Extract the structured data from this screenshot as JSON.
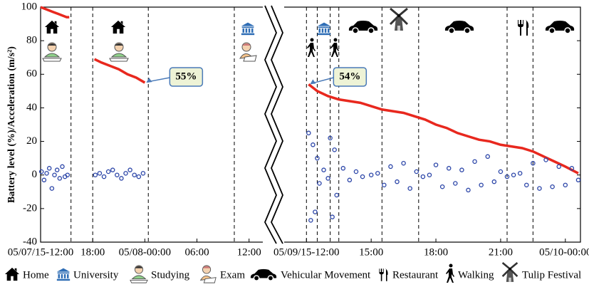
{
  "chart_data": {
    "type": "line",
    "y_label": "Battery level (%)/Acceleration (m/s²)",
    "ylim": [
      -40,
      100
    ],
    "yticks": [
      -40,
      -20,
      0,
      20,
      40,
      60,
      80,
      100
    ],
    "panels": [
      {
        "xlim": [
          0,
          25.5
        ],
        "xticks": [
          {
            "value": 0,
            "label": "05/07/15-12:00"
          },
          {
            "value": 6,
            "label": "18:00"
          },
          {
            "value": 12,
            "label": "05/08-00:00"
          },
          {
            "value": 18,
            "label": "06:00"
          },
          {
            "value": 24,
            "label": "12:00"
          }
        ],
        "event_lines": [
          3.5,
          6.0,
          12.4,
          22.3
        ],
        "series": [
          {
            "type": "line",
            "color": "#e8281e",
            "x": [
              0,
              0.5,
              1,
              1.5,
              2,
              2.5,
              3,
              3.3,
              4.5,
              6.2,
              7,
              8,
              9,
              10,
              11,
              12
            ],
            "values": [
              100,
              99,
              98,
              97,
              96,
              95,
              94,
              94,
              null,
              69,
              67,
              65,
              63,
              60,
              58,
              55
            ]
          },
          {
            "type": "scatter",
            "color": "#2b45a8",
            "x": [
              0.1,
              0.4,
              0.7,
              1.0,
              1.3,
              1.6,
              1.9,
              2.2,
              2.5,
              2.8,
              3.1,
              6.3,
              6.8,
              7.3,
              7.8,
              8.3,
              8.8,
              9.3,
              9.8,
              10.3,
              10.8,
              11.3,
              11.8
            ],
            "values": [
              2,
              -3,
              1,
              4,
              -8,
              0,
              3,
              -2,
              5,
              -1,
              0,
              0,
              1,
              -1,
              2,
              3,
              0,
              -2,
              1,
              3,
              0,
              -1,
              1
            ]
          }
        ],
        "annotations": [
          {
            "label": "55%",
            "x": 12,
            "value": 55
          }
        ]
      },
      {
        "xlim": [
          11,
          24.7
        ],
        "xticks": [
          {
            "value": 12,
            "label": "05/09/15-12:00"
          },
          {
            "value": 15,
            "label": "15:00"
          },
          {
            "value": 18,
            "label": "18:00"
          },
          {
            "value": 21,
            "label": "21:00"
          },
          {
            "value": 24,
            "label": "05/10-00:00"
          }
        ],
        "event_lines": [
          12.0,
          12.5,
          13.1,
          13.5,
          15.5,
          17.2,
          21.3,
          22.5
        ],
        "series": [
          {
            "type": "line",
            "color": "#e8281e",
            "x": [
              12.1,
              12.5,
              13,
              13.5,
              14,
              14.5,
              15,
              15.5,
              16,
              16.5,
              17,
              17.5,
              18,
              18.5,
              19,
              19.5,
              20,
              20.5,
              21,
              21.5,
              22,
              22.5,
              23,
              23.5,
              24,
              24.3,
              24.6
            ],
            "values": [
              54,
              50,
              47,
              45,
              44,
              43,
              41,
              39,
              38,
              37,
              35,
              33,
              30,
              28,
              25,
              23,
              21,
              20,
              18,
              17,
              16,
              14,
              11,
              8,
              5,
              3,
              1
            ]
          },
          {
            "type": "scatter",
            "color": "#2b45a8",
            "x": [
              12.1,
              12.2,
              12.3,
              12.4,
              12.5,
              12.6,
              12.8,
              13.0,
              13.1,
              13.2,
              13.3,
              13.4,
              13.7,
              14.0,
              14.3,
              14.6,
              15.0,
              15.3,
              15.6,
              15.9,
              16.2,
              16.5,
              16.8,
              17.1,
              17.4,
              17.7,
              18.0,
              18.3,
              18.6,
              18.9,
              19.2,
              19.5,
              19.8,
              20.1,
              20.4,
              20.7,
              21.0,
              21.3,
              21.6,
              21.9,
              22.2,
              22.5,
              22.8,
              23.1,
              23.4,
              23.7,
              24.0,
              24.3,
              24.6
            ],
            "values": [
              25,
              -27,
              18,
              -22,
              10,
              -5,
              3,
              -2,
              22,
              -25,
              15,
              -12,
              4,
              -3,
              2,
              -1,
              0,
              1,
              -6,
              5,
              -4,
              7,
              -8,
              2,
              -1,
              0,
              6,
              -7,
              4,
              -5,
              3,
              -9,
              8,
              -6,
              11,
              -4,
              2,
              -1,
              0,
              1,
              -6,
              7,
              -8,
              9,
              -7,
              5,
              -6,
              4,
              -3
            ]
          }
        ],
        "annotations": [
          {
            "label": "54%",
            "x": 12.1,
            "value": 54
          }
        ]
      }
    ],
    "legend": [
      "Home",
      "University",
      "Studying",
      "Exam",
      "Vehicular Movement",
      "Restaurant",
      "Walking",
      "Tulip Festival"
    ]
  }
}
